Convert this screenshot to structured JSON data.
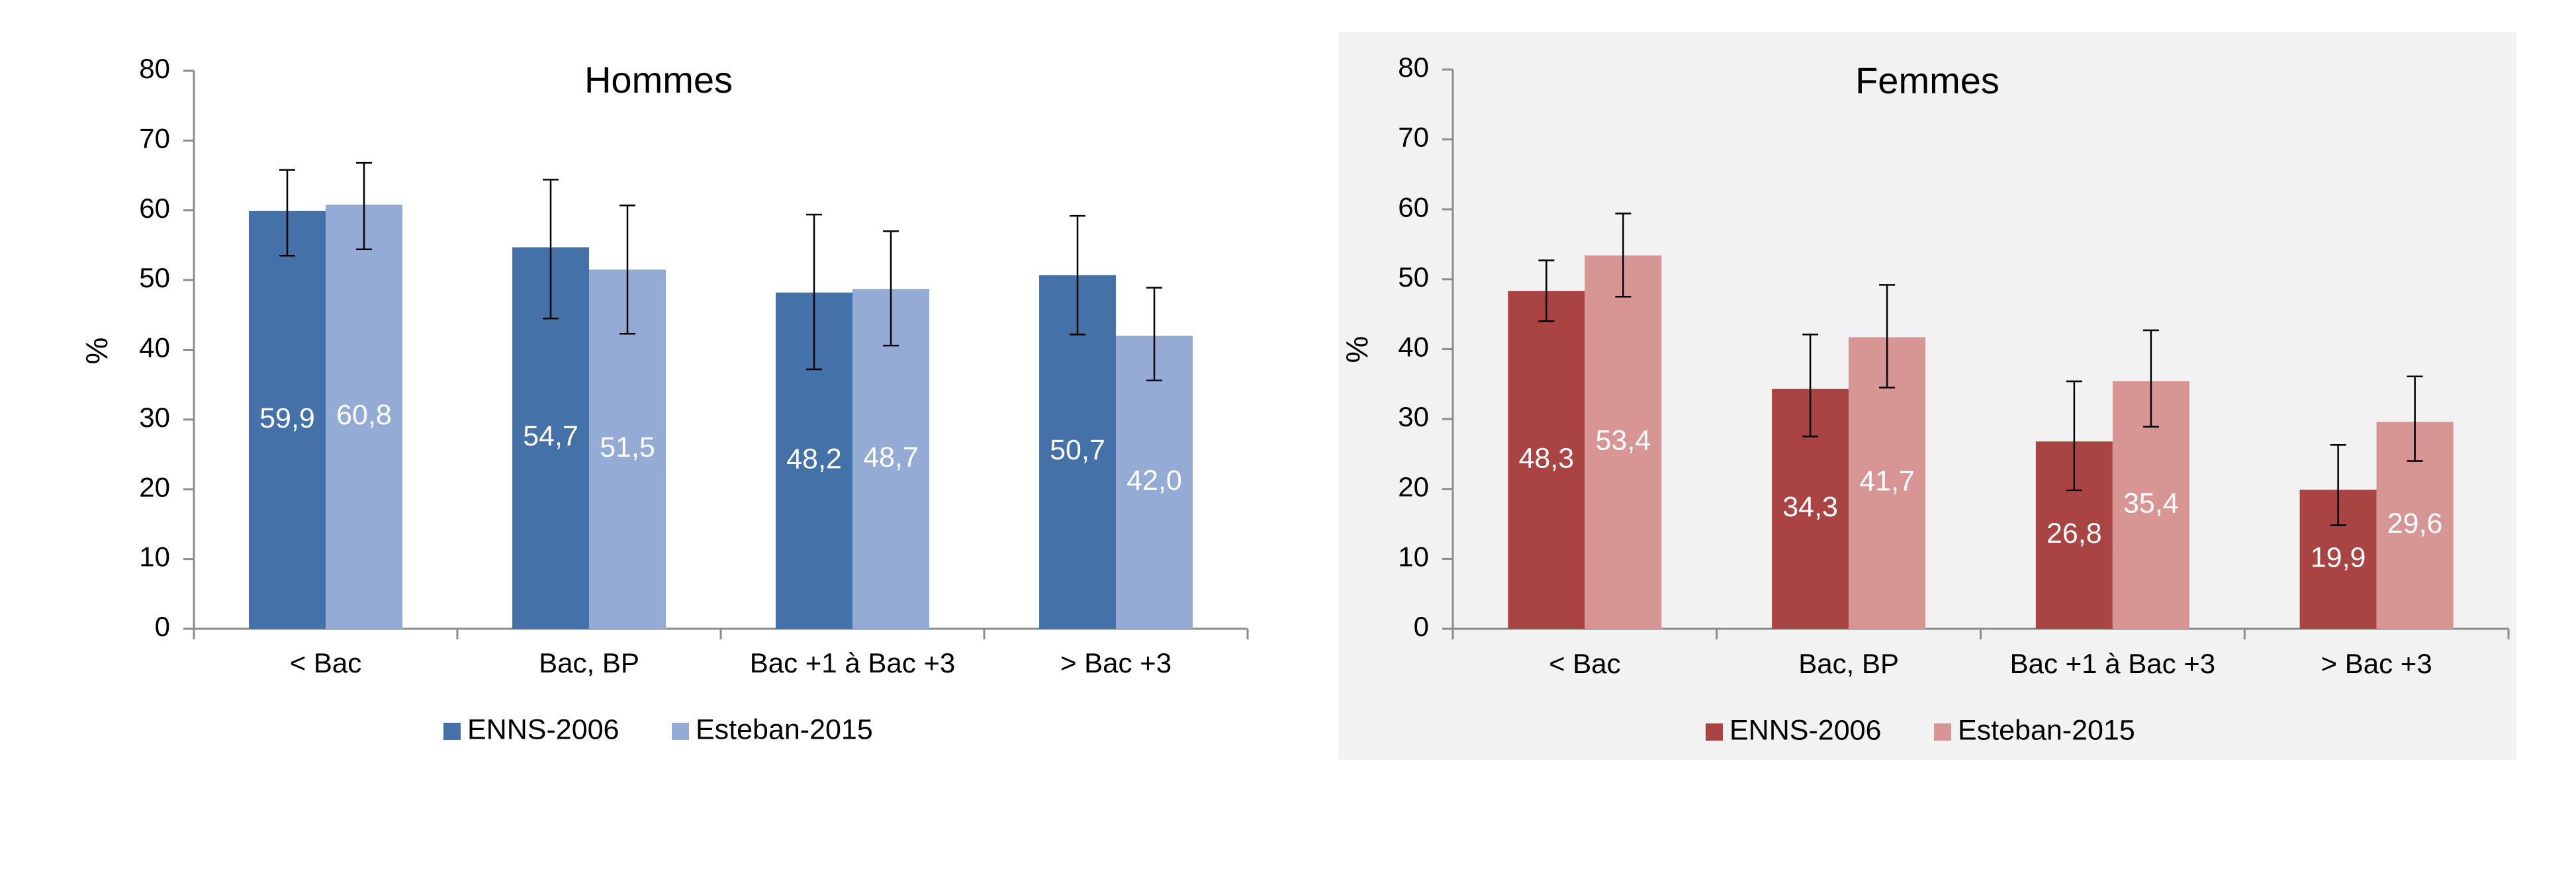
{
  "chart_data": [
    {
      "type": "bar",
      "title": "Hommes",
      "ylabel": "%",
      "xlabel": "",
      "ylim": [
        0,
        80
      ],
      "yticks": [
        "0",
        "10",
        "20",
        "30",
        "40",
        "50",
        "60",
        "70",
        "80"
      ],
      "categories": [
        "< Bac",
        "Bac, BP",
        "Bac +1 à Bac +3",
        "> Bac +3"
      ],
      "series": [
        {
          "name": "ENNS-2006",
          "color": "#4472a8",
          "values": [
            59.9,
            54.7,
            48.2,
            50.7
          ],
          "labels": [
            "59,9",
            "54,7",
            "48,2",
            "50,7"
          ],
          "err_low": [
            53.5,
            44.5,
            37.2,
            42.2
          ],
          "err_high": [
            65.8,
            64.4,
            59.4,
            59.2
          ]
        },
        {
          "name": "Esteban-2015",
          "color": "#93abd5",
          "values": [
            60.8,
            51.5,
            48.7,
            42.0
          ],
          "labels": [
            "60,8",
            "51,5",
            "48,7",
            "42,0"
          ],
          "err_low": [
            54.4,
            42.3,
            40.6,
            35.6
          ],
          "err_high": [
            66.8,
            60.7,
            57.0,
            48.9
          ]
        }
      ],
      "legend": "bottom",
      "grid": false
    },
    {
      "type": "bar",
      "title": "Femmes",
      "ylabel": "%",
      "xlabel": "",
      "ylim": [
        0,
        80
      ],
      "yticks": [
        "0",
        "10",
        "20",
        "30",
        "40",
        "50",
        "60",
        "70",
        "80"
      ],
      "categories": [
        "< Bac",
        "Bac, BP",
        "Bac +1 à Bac +3",
        "> Bac +3"
      ],
      "series": [
        {
          "name": "ENNS-2006",
          "color": "#a94443",
          "values": [
            48.3,
            34.3,
            26.8,
            19.9
          ],
          "labels": [
            "48,3",
            "34,3",
            "26,8",
            "19,9"
          ],
          "err_low": [
            44.0,
            27.5,
            19.8,
            14.8
          ],
          "err_high": [
            52.7,
            42.1,
            35.4,
            26.3
          ]
        },
        {
          "name": "Esteban-2015",
          "color": "#d79594",
          "values": [
            53.4,
            41.7,
            35.4,
            29.6
          ],
          "labels": [
            "53,4",
            "41,7",
            "35,4",
            "29,6"
          ],
          "err_low": [
            47.5,
            34.5,
            28.9,
            24.0
          ],
          "err_high": [
            59.4,
            49.2,
            42.7,
            36.1
          ]
        }
      ],
      "legend": "bottom",
      "grid": false
    }
  ]
}
